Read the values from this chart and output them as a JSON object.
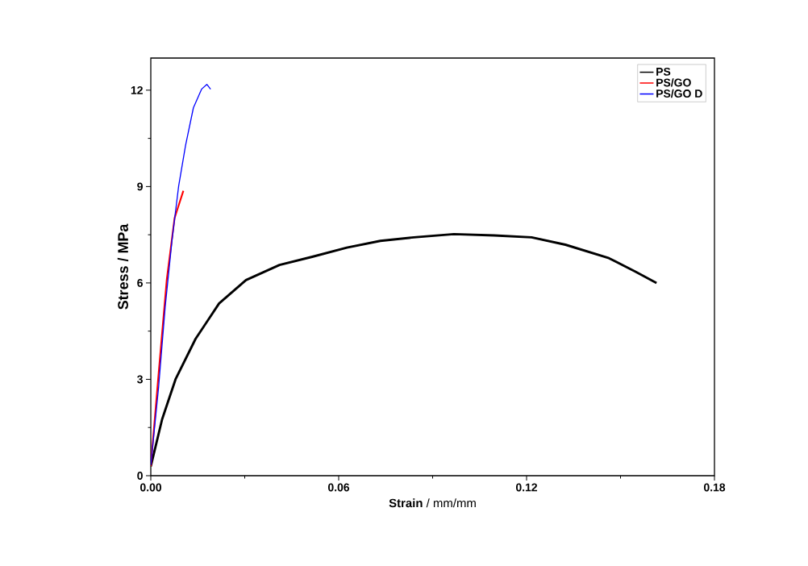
{
  "chart_data": {
    "type": "line",
    "xlabel": "**Strain** / mm/mm",
    "ylabel": "Stress / MPa",
    "xlim": [
      0,
      0.18
    ],
    "ylim": [
      0,
      13
    ],
    "xticks": [
      {
        "value": 0,
        "label": "0.00"
      },
      {
        "value": 0.06,
        "label": "0.06"
      },
      {
        "value": 0.12,
        "label": "0.12"
      },
      {
        "value": 0.18,
        "label": "0.18"
      }
    ],
    "yticks": [
      0,
      3,
      6,
      9,
      12
    ],
    "legend": "top right",
    "grid": false,
    "marker": "none",
    "line_style": "solid",
    "series": [
      {
        "name": "PS",
        "color": "#000000",
        "x": [
          0,
          0.0036,
          0.0079,
          0.0143,
          0.0218,
          0.0304,
          0.0411,
          0.0518,
          0.0626,
          0.0733,
          0.084,
          0.0968,
          0.1097,
          0.1216,
          0.1324,
          0.1463,
          0.1548,
          0.1615
        ],
        "values": [
          0.29,
          1.75,
          3.0,
          4.26,
          5.36,
          6.09,
          6.56,
          6.82,
          7.1,
          7.31,
          7.42,
          7.52,
          7.48,
          7.42,
          7.19,
          6.77,
          6.35,
          6.0
        ]
      },
      {
        "name": "PS/GO",
        "color": "#ff0000",
        "x": [
          0,
          0.0025,
          0.0051,
          0.0076,
          0.0104
        ],
        "values": [
          0.3,
          3.18,
          6.1,
          8.02,
          8.87
        ]
      },
      {
        "name": "PS/GO D",
        "color": "#0000ff",
        "x": [
          0,
          0.0025,
          0.0046,
          0.0068,
          0.0089,
          0.0111,
          0.0136,
          0.0162,
          0.0179,
          0.0191
        ],
        "values": [
          0.33,
          2.76,
          5.26,
          7.35,
          9.02,
          10.28,
          11.45,
          12.03,
          12.18,
          12.03
        ]
      }
    ]
  }
}
